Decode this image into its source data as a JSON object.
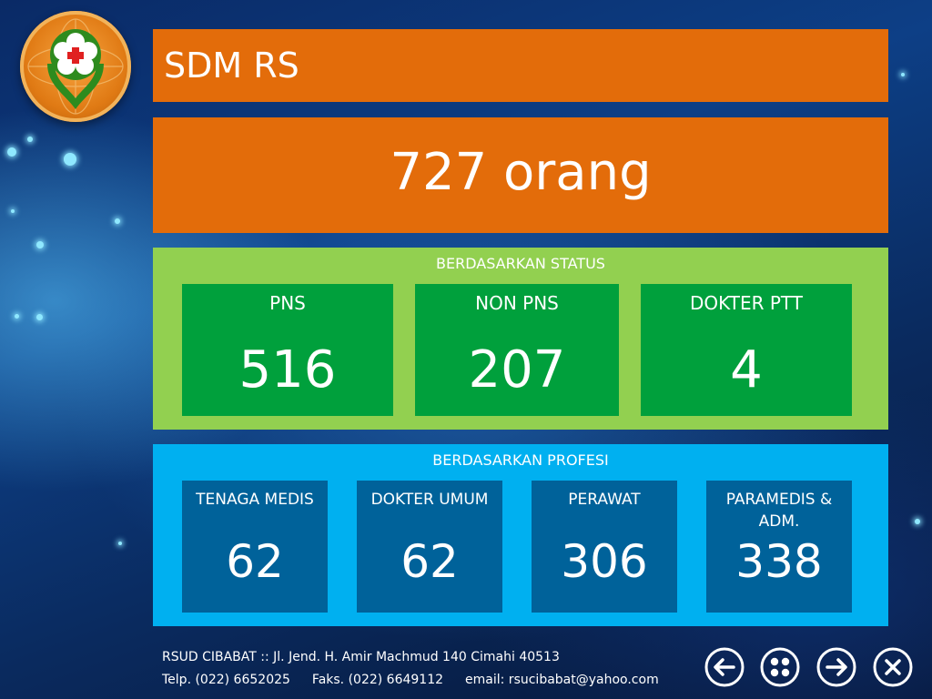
{
  "header": {
    "title": "SDM RS"
  },
  "total": {
    "text": "727 orang"
  },
  "status": {
    "title": "BERDASARKAN STATUS",
    "cards": [
      {
        "label": "PNS",
        "value": "516"
      },
      {
        "label": "NON PNS",
        "value": "207"
      },
      {
        "label": "DOKTER PTT",
        "value": "4"
      }
    ]
  },
  "profesi": {
    "title": "BERDASARKAN PROFESI",
    "cards": [
      {
        "label": "TENAGA MEDIS",
        "value": "62"
      },
      {
        "label": "DOKTER UMUM",
        "value": "62"
      },
      {
        "label": "PERAWAT",
        "value": "306"
      },
      {
        "label": "PARAMEDIS & ADM.",
        "value": "338"
      }
    ]
  },
  "footer": {
    "line1": "RSUD CIBABAT :: Jl. Jend. H. Amir Machmud 140  Cimahi 40513",
    "telp": "Telp. (022) 6652025",
    "faks": "Faks. (022) 6649112",
    "email": "email: rsucibabat@yahoo.com"
  },
  "nav": {
    "icons": [
      "arrow-left-icon",
      "grid-icon",
      "arrow-right-icon",
      "close-icon"
    ]
  },
  "colors": {
    "orange": "#e36c0a",
    "green_panel": "#92d050",
    "green_card": "#00a03c",
    "blue_panel": "#00b0f0",
    "blue_card": "#00629a"
  }
}
